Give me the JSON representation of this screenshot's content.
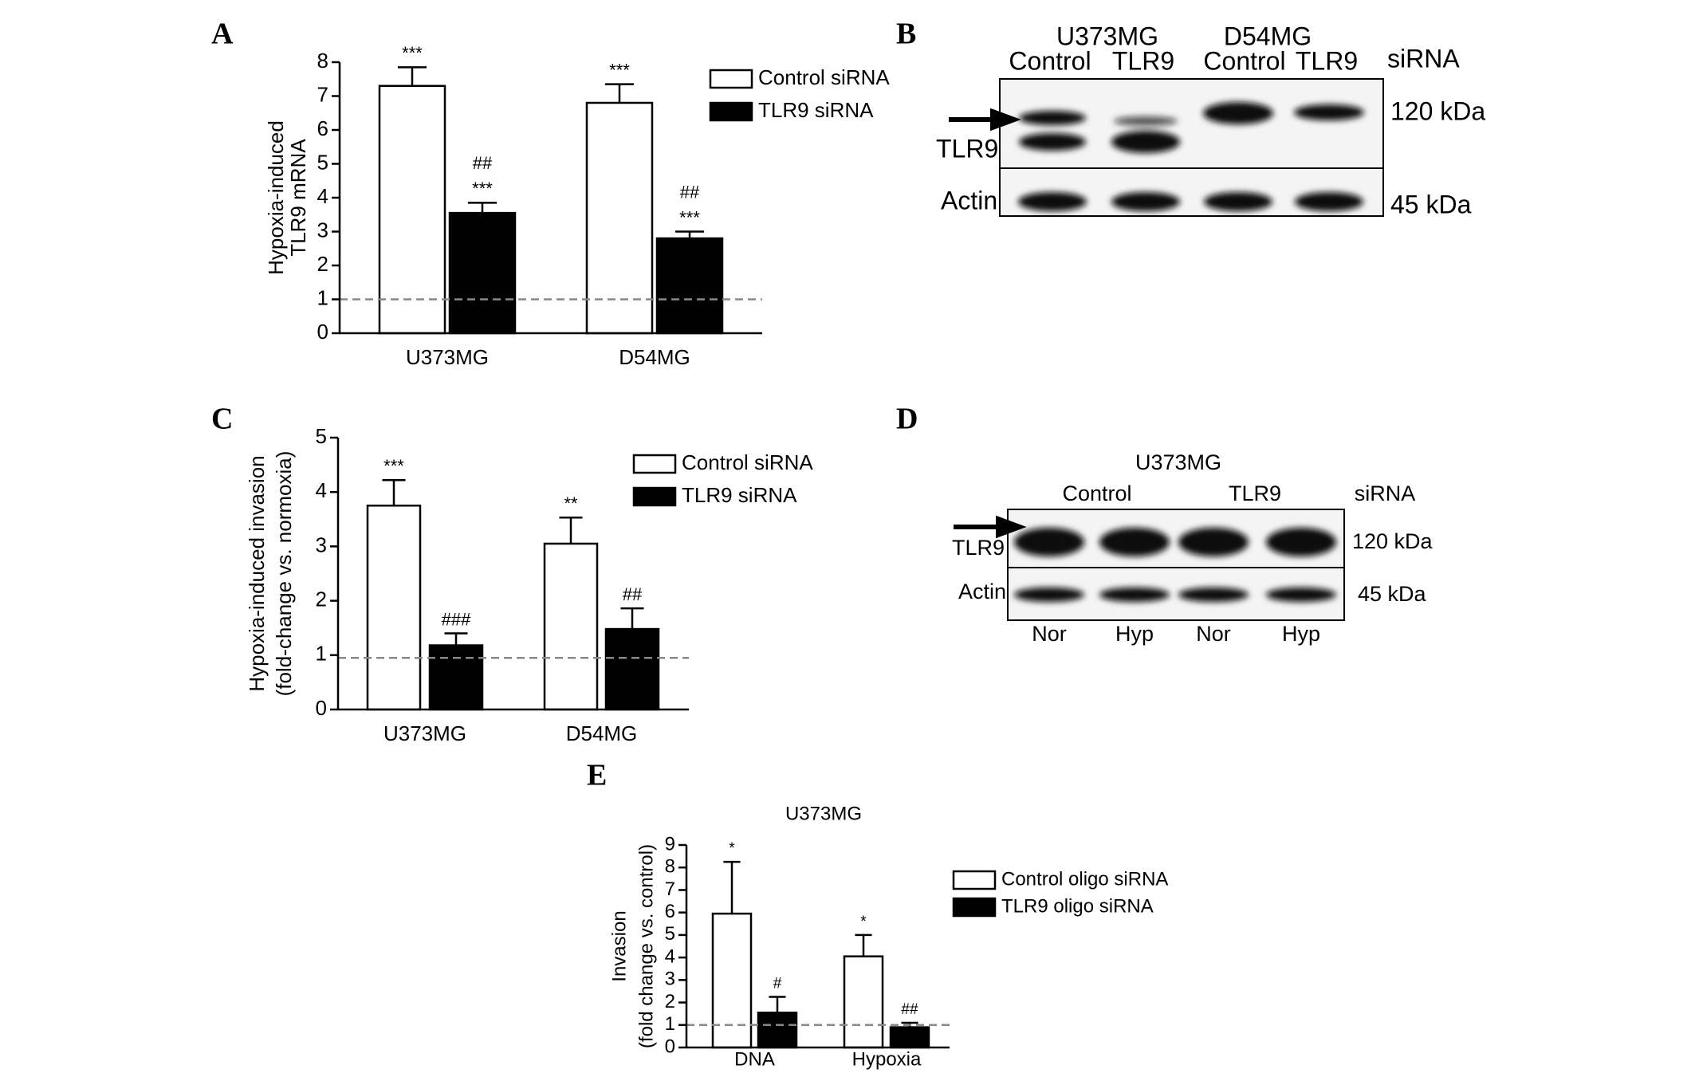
{
  "chart_data": [
    {
      "type": "bar",
      "panel": "A",
      "ylabel": [
        "Hypoxia-induced",
        "TLR9 mRNA"
      ],
      "categories": [
        "U373MG",
        "D54MG"
      ],
      "series": [
        {
          "name": "Control siRNA",
          "color": "#ffffff",
          "values": [
            7.3,
            6.8
          ],
          "errors": [
            0.55,
            0.55
          ],
          "annotations": [
            [
              "***"
            ],
            [
              "***"
            ]
          ]
        },
        {
          "name": "TLR9 siRNA",
          "color": "#000000",
          "values": [
            3.55,
            2.8
          ],
          "errors": [
            0.3,
            0.2
          ],
          "annotations": [
            [
              "***",
              "##"
            ],
            [
              "***",
              "##"
            ]
          ]
        }
      ],
      "ylim": [
        0,
        8
      ],
      "yticks": [
        0,
        1,
        2,
        3,
        4,
        5,
        6,
        7,
        8
      ],
      "refline": 1,
      "legend": "upper right"
    },
    {
      "type": "bar",
      "panel": "C",
      "ylabel": [
        "Hypoxia-induced invasion",
        "(fold-change vs. normoxia)"
      ],
      "categories": [
        "U373MG",
        "D54MG"
      ],
      "series": [
        {
          "name": "Control siRNA",
          "color": "#ffffff",
          "values": [
            3.75,
            3.05
          ],
          "errors": [
            0.47,
            0.48
          ],
          "annotations": [
            [
              "***"
            ],
            [
              "**"
            ]
          ]
        },
        {
          "name": "TLR9 siRNA",
          "color": "#000000",
          "values": [
            1.18,
            1.48
          ],
          "errors": [
            0.22,
            0.38
          ],
          "annotations": [
            [
              "###"
            ],
            [
              "##"
            ]
          ]
        }
      ],
      "ylim": [
        0,
        5
      ],
      "yticks": [
        0,
        1,
        2,
        3,
        4,
        5
      ],
      "refline": 0.95,
      "legend": "upper right"
    },
    {
      "type": "bar",
      "panel": "E",
      "title": "U373MG",
      "ylabel": [
        "Invasion",
        "(fold change vs. control)"
      ],
      "categories": [
        "DNA",
        "Hypoxia"
      ],
      "series": [
        {
          "name": "Control oligo siRNA",
          "color": "#ffffff",
          "values": [
            5.95,
            4.05
          ],
          "errors": [
            2.3,
            0.95
          ],
          "annotations": [
            [
              "*"
            ],
            [
              "*"
            ]
          ]
        },
        {
          "name": "TLR9 oligo siRNA",
          "color": "#000000",
          "values": [
            1.55,
            0.9
          ],
          "errors": [
            0.7,
            0.2
          ],
          "annotations": [
            [
              "#"
            ],
            [
              "##"
            ]
          ]
        }
      ],
      "ylim": [
        0,
        9
      ],
      "yticks": [
        0,
        1,
        2,
        3,
        4,
        5,
        6,
        7,
        8,
        9
      ],
      "refline": 1,
      "legend": "right"
    }
  ],
  "blots": [
    {
      "panel": "B",
      "groups": [
        {
          "label": "U373MG",
          "lanes": [
            "Control",
            "TLR9"
          ]
        },
        {
          "label": "D54MG",
          "lanes": [
            "Control",
            "TLR9"
          ]
        }
      ],
      "lane_note": "siRNA",
      "rows": [
        {
          "label": "TLR9",
          "size": "120 kDa"
        },
        {
          "label": "Actin",
          "size": "45 kDa"
        }
      ]
    },
    {
      "panel": "D",
      "title": "U373MG",
      "groups": [
        "Control",
        "TLR9"
      ],
      "lane_note": "siRNA",
      "rows": [
        {
          "label": "TLR9",
          "size": "120 kDa"
        },
        {
          "label": "Actin",
          "size": "45 kDa"
        }
      ],
      "lanes": [
        "Nor",
        "Hyp",
        "Nor",
        "Hyp"
      ]
    }
  ]
}
